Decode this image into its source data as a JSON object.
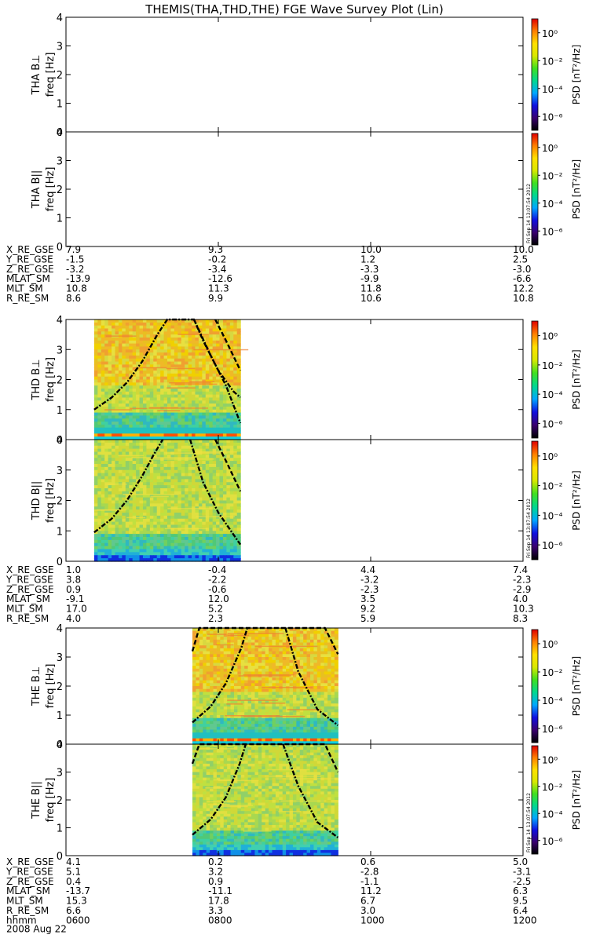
{
  "title": "THEMIS(THA,THD,THE) FGE Wave Survey Plot (Lin)",
  "colorbar": {
    "label": "PSD [nT²/Hz]",
    "tick_labels": [
      "10⁰",
      "10⁻²",
      "10⁻⁴",
      "10⁻⁶"
    ],
    "tick_exponents": [
      0,
      -2,
      -4,
      -6
    ],
    "range_exponent": [
      -7,
      1
    ],
    "colors": [
      "#000000",
      "#3a0070",
      "#1010e0",
      "#00a8ff",
      "#00d890",
      "#40e020",
      "#d8e800",
      "#ffe000",
      "#ff8000",
      "#e00000"
    ]
  },
  "stamp": "Fri Sep 14 13:07:54 2012",
  "chart_data": {
    "type": "heatmap",
    "x": {
      "ticks": [
        600,
        800,
        1000,
        1200
      ],
      "tick_labels": [
        "0600",
        "0800",
        "1000",
        "1200"
      ],
      "range": [
        600,
        1200
      ],
      "label": "hhmm",
      "date": "2008 Aug 22"
    },
    "y": {
      "range": [
        0,
        4
      ],
      "ticks": [
        0,
        1,
        2,
        3,
        4
      ],
      "tick_labels": [
        "0",
        "1",
        "2",
        "3",
        "4"
      ]
    },
    "probes": [
      {
        "name": "THA",
        "panels": [
          {
            "label": "THA B⊥",
            "ylabel": "freq [Hz]",
            "data_range": null
          },
          {
            "label": "THA B||",
            "ylabel": "freq [Hz]",
            "data_range": null
          }
        ],
        "ephemeris": [
          {
            "label": "X_RE_GSE",
            "values": [
              "7.9",
              "9.3",
              "10.0",
              "10.0"
            ]
          },
          {
            "label": "Y_RE_GSE",
            "values": [
              "-1.5",
              "-0.2",
              "1.2",
              "2.5"
            ]
          },
          {
            "label": "Z_RE_GSE",
            "values": [
              "-3.2",
              "-3.4",
              "-3.3",
              "-3.0"
            ]
          },
          {
            "label": "MLAT_SM",
            "values": [
              "-13.9",
              "-12.6",
              "-9.9",
              "-6.6"
            ]
          },
          {
            "label": "MLT_SM",
            "values": [
              "10.8",
              "11.3",
              "11.8",
              "12.2"
            ]
          },
          {
            "label": "R_RE_SM",
            "values": [
              "8.6",
              "9.9",
              "10.6",
              "10.8"
            ]
          }
        ]
      },
      {
        "name": "THD",
        "panels": [
          {
            "label": "THD B⊥",
            "ylabel": "freq [Hz]",
            "data_range": [
              637,
              829
            ],
            "band": "strong",
            "curve_dashdot": [
              [
                637,
                1.0
              ],
              [
                660,
                1.4
              ],
              [
                680,
                1.9
              ],
              [
                700,
                2.6
              ],
              [
                720,
                3.5
              ],
              [
                733,
                4.0
              ],
              [
                768,
                4.0
              ],
              [
                780,
                3.3
              ],
              [
                800,
                2.3
              ],
              [
                820,
                1.6
              ],
              [
                829,
                1.4
              ]
            ],
            "curve_dashdot2": [
              [
                768,
                4.0
              ],
              [
                790,
                2.8
              ],
              [
                810,
                1.8
              ],
              [
                829,
                0.55
              ]
            ],
            "curve_dashed": [
              [
                796,
                4.0
              ],
              [
                810,
                3.3
              ],
              [
                829,
                2.3
              ]
            ]
          },
          {
            "label": "THD B||",
            "ylabel": "freq [Hz]",
            "data_range": [
              637,
              829
            ],
            "band": "weak",
            "curve_dashdot": [
              [
                637,
                0.95
              ],
              [
                660,
                1.4
              ],
              [
                680,
                2.0
              ],
              [
                700,
                2.8
              ],
              [
                715,
                3.5
              ],
              [
                727,
                4.0
              ]
            ],
            "curve_dashdot2": [
              [
                763,
                4.0
              ],
              [
                780,
                2.6
              ],
              [
                800,
                1.6
              ],
              [
                829,
                0.55
              ]
            ],
            "curve_dashed": [
              [
                796,
                4.0
              ],
              [
                810,
                3.3
              ],
              [
                829,
                2.3
              ]
            ]
          }
        ],
        "ephemeris": [
          {
            "label": "X_RE_GSE",
            "values": [
              "1.0",
              "-0.4",
              "4.4",
              "7.4"
            ]
          },
          {
            "label": "Y_RE_GSE",
            "values": [
              "3.8",
              "-2.2",
              "-3.2",
              "-2.3"
            ]
          },
          {
            "label": "Z_RE_GSE",
            "values": [
              "0.9",
              "-0.6",
              "-2.3",
              "-2.9"
            ]
          },
          {
            "label": "MLAT_SM",
            "values": [
              "-9.1",
              "12.0",
              "3.5",
              "4.0"
            ]
          },
          {
            "label": "MLT_SM",
            "values": [
              "17.0",
              "5.2",
              "9.2",
              "10.3"
            ]
          },
          {
            "label": "R_RE_SM",
            "values": [
              "4.0",
              "2.3",
              "5.9",
              "8.3"
            ]
          }
        ]
      },
      {
        "name": "THE",
        "panels": [
          {
            "label": "THE B⊥",
            "ylabel": "freq [Hz]",
            "data_range": [
              766,
              957
            ],
            "band": "strong",
            "curve_dashdot": [
              [
                766,
                0.75
              ],
              [
                790,
                1.3
              ],
              [
                810,
                2.1
              ],
              [
                830,
                3.3
              ],
              [
                838,
                4.0
              ]
            ],
            "curve_dashdot2": [
              [
                888,
                4.0
              ],
              [
                905,
                2.5
              ],
              [
                930,
                1.2
              ],
              [
                957,
                0.65
              ]
            ],
            "curve_dashed": [
              [
                766,
                3.2
              ],
              [
                775,
                4.0
              ],
              [
                940,
                4.0
              ],
              [
                957,
                3.1
              ]
            ]
          },
          {
            "label": "THE B||",
            "ylabel": "freq [Hz]",
            "data_range": [
              766,
              957
            ],
            "band": "weak",
            "curve_dashdot": [
              [
                766,
                0.75
              ],
              [
                790,
                1.3
              ],
              [
                810,
                2.1
              ],
              [
                828,
                3.3
              ],
              [
                836,
                4.0
              ]
            ],
            "curve_dashdot2": [
              [
                885,
                4.0
              ],
              [
                905,
                2.5
              ],
              [
                930,
                1.2
              ],
              [
                957,
                0.65
              ]
            ],
            "curve_dashed": [
              [
                766,
                3.3
              ],
              [
                775,
                4.0
              ],
              [
                940,
                4.0
              ],
              [
                957,
                3.0
              ]
            ]
          }
        ],
        "ephemeris": [
          {
            "label": "X_RE_GSE",
            "values": [
              "4.1",
              "0.2",
              "0.6",
              "5.0"
            ]
          },
          {
            "label": "Y_RE_GSE",
            "values": [
              "5.1",
              "3.2",
              "-2.8",
              "-3.1"
            ]
          },
          {
            "label": "Z_RE_GSE",
            "values": [
              "0.4",
              "0.9",
              "-1.1",
              "-2.5"
            ]
          },
          {
            "label": "MLAT_SM",
            "values": [
              "-13.7",
              "-11.1",
              "11.2",
              "6.3"
            ]
          },
          {
            "label": "MLT_SM",
            "values": [
              "15.3",
              "17.8",
              "6.7",
              "9.5"
            ]
          },
          {
            "label": "R_RE_SM",
            "values": [
              "6.6",
              "3.3",
              "3.0",
              "6.4"
            ]
          }
        ]
      }
    ]
  }
}
